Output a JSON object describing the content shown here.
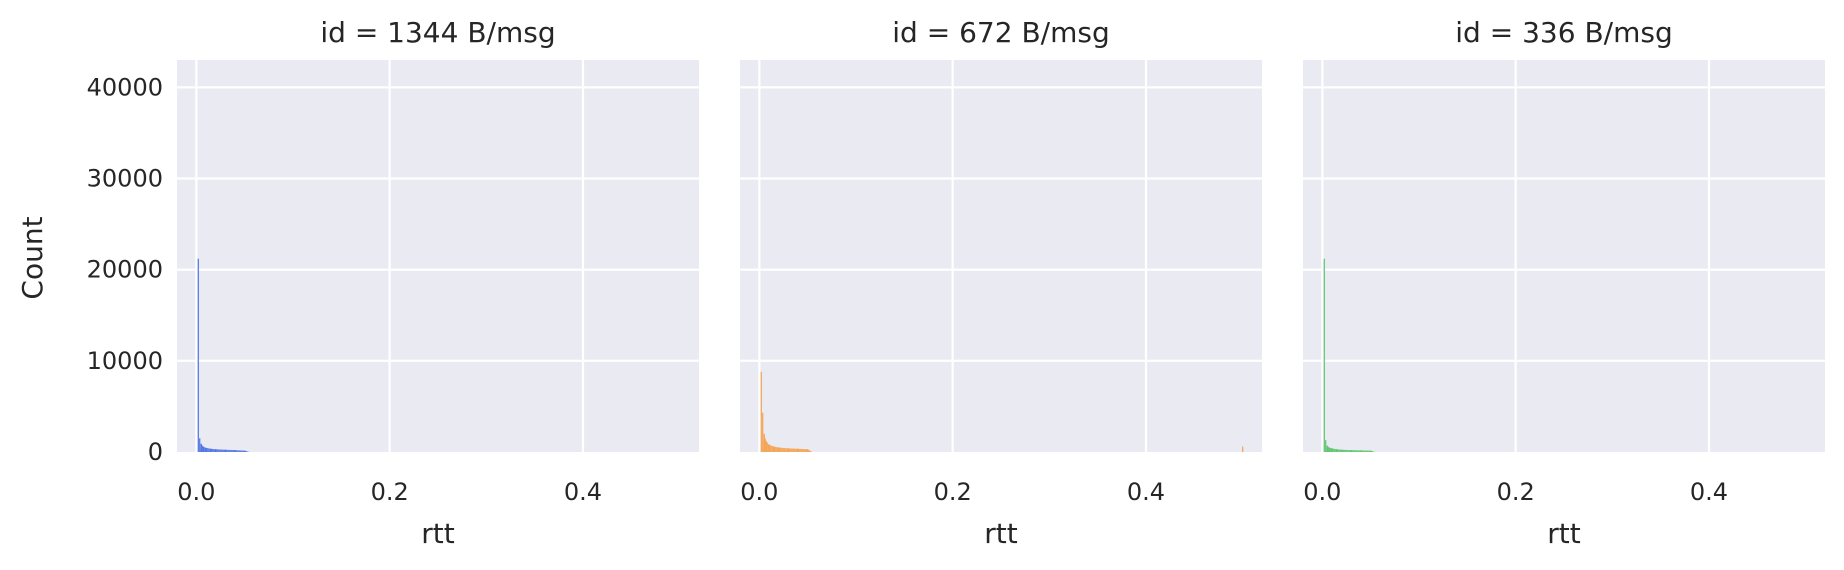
{
  "chart_data": {
    "type": "histogram",
    "ylabel": "Count",
    "ylim": [
      0,
      43000
    ],
    "yticks": [
      0,
      10000,
      20000,
      30000,
      40000
    ],
    "xlim": [
      -0.02,
      0.52
    ],
    "xticks": [
      0.0,
      0.2,
      0.4
    ],
    "xtick_labels": [
      "0.0",
      "0.2",
      "0.4"
    ],
    "grid": true,
    "panels": [
      {
        "title": "id = 1344 B/msg",
        "xlabel": "rtt",
        "color": "#4c72e0",
        "bars": [
          {
            "x": 0.002,
            "count": 21200
          },
          {
            "x": 0.0035,
            "count": 1500
          },
          {
            "x": 0.005,
            "count": 900
          },
          {
            "x": 0.007,
            "count": 600
          },
          {
            "x": 0.01,
            "count": 450
          },
          {
            "x": 0.015,
            "count": 350
          },
          {
            "x": 0.02,
            "count": 300
          },
          {
            "x": 0.03,
            "count": 250
          },
          {
            "x": 0.04,
            "count": 200
          },
          {
            "x": 0.05,
            "count": 150
          }
        ]
      },
      {
        "title": "id = 672 B/msg",
        "xlabel": "rtt",
        "color": "#f5a14c",
        "bars": [
          {
            "x": 0.002,
            "count": 8800
          },
          {
            "x": 0.0035,
            "count": 4300
          },
          {
            "x": 0.005,
            "count": 2000
          },
          {
            "x": 0.007,
            "count": 1200
          },
          {
            "x": 0.01,
            "count": 800
          },
          {
            "x": 0.015,
            "count": 600
          },
          {
            "x": 0.02,
            "count": 500
          },
          {
            "x": 0.03,
            "count": 400
          },
          {
            "x": 0.04,
            "count": 350
          },
          {
            "x": 0.05,
            "count": 300
          },
          {
            "x": 0.5,
            "count": 600
          }
        ]
      },
      {
        "title": "id = 336 B/msg",
        "xlabel": "rtt",
        "color": "#5bc46b",
        "bars": [
          {
            "x": 0.002,
            "count": 21200
          },
          {
            "x": 0.0035,
            "count": 1300
          },
          {
            "x": 0.005,
            "count": 700
          },
          {
            "x": 0.007,
            "count": 500
          },
          {
            "x": 0.01,
            "count": 400
          },
          {
            "x": 0.015,
            "count": 300
          },
          {
            "x": 0.02,
            "count": 250
          },
          {
            "x": 0.03,
            "count": 200
          },
          {
            "x": 0.04,
            "count": 180
          },
          {
            "x": 0.05,
            "count": 150
          }
        ]
      }
    ]
  },
  "colors": {
    "panel_background": "#eaeaf2",
    "grid": "#ffffff",
    "text": "#262626"
  }
}
